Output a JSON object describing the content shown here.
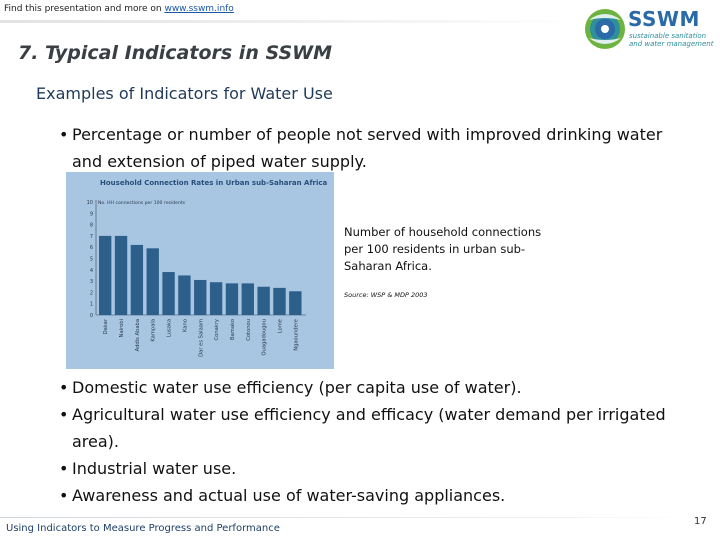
{
  "header": {
    "note_prefix": "Find this presentation and more on ",
    "note_link": "www.sswm.info",
    "logo": {
      "title": "SSWM",
      "subtitle_line1": "sustainable sanitation",
      "subtitle_line2": "and water management",
      "colors": {
        "blue": "#2b6aa8",
        "teal": "#2f8f9d",
        "green": "#6cb33f"
      }
    }
  },
  "slide": {
    "title": "7. Typical Indicators in SSWM",
    "section_heading": "Examples of Indicators for Water Use",
    "bullet_glyph": "•",
    "bullet_1": "Percentage or number of people not served with improved drinking water and extension of piped water supply.",
    "chart_caption": "Number of household connections per 100 residents in urban sub-Saharan Africa.",
    "chart_source": "Source: WSP & MDP 2003",
    "bullets_lower": [
      "Domestic water use efficiency (per capita use of water).",
      "Agricultural water use efficiency and efficacy (water demand per irrigated area).",
      "Industrial water use.",
      "Awareness and actual use of water-saving appliances."
    ]
  },
  "footer": {
    "text": "Using Indicators to Measure Progress and Performance",
    "page_number": "17"
  },
  "chart_data": {
    "type": "bar",
    "title": "Household Connection Rates in Urban sub-Saharan Africa",
    "ylabel": "No. HH connections per 100 residents",
    "ylim": [
      0,
      10
    ],
    "yticks": [
      0,
      1,
      2,
      3,
      4,
      5,
      6,
      7,
      8,
      9,
      10
    ],
    "categories": [
      "Dakar",
      "Nairobi",
      "Addis Ababa",
      "Kampala",
      "Lusaka",
      "Kano",
      "Dar es Salaam",
      "Conakry",
      "Bamako",
      "Cotonou",
      "Ouagadougou",
      "Lome",
      "Ngaoundere"
    ],
    "values": [
      7.0,
      7.0,
      6.2,
      5.9,
      3.8,
      3.5,
      3.1,
      2.9,
      2.8,
      2.8,
      2.5,
      2.4,
      2.1
    ],
    "bar_color": "#2c5f8a",
    "background_color": "#a8c5e2",
    "title_color": "#274f7a",
    "grid": false
  }
}
